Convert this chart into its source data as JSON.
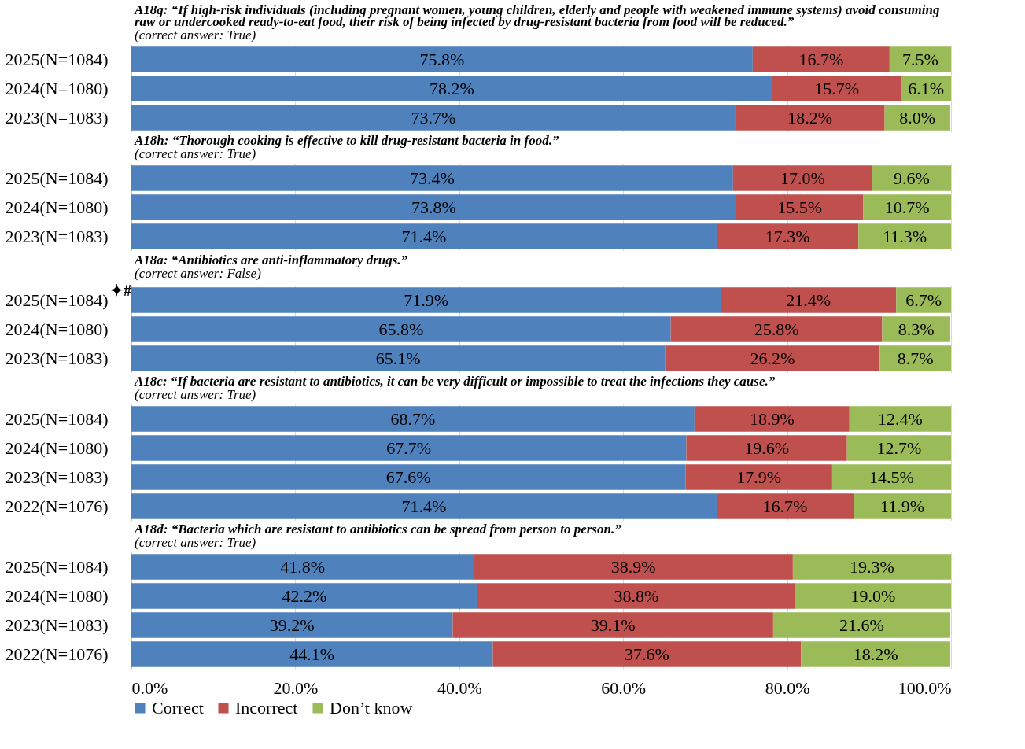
{
  "chart_data": [
    {
      "type": "bar",
      "orientation": "horizontal",
      "stacked": true,
      "title": "A18g: “If high-risk individuals (including pregnant women, young children, elderly and people with weakened immune systems) avoid consuming raw or undercooked ready-to-eat food, their risk of being infected by drug-resistant bacteria from food will be reduced.”",
      "subtitle": "(correct answer: True)",
      "categories": [
        "2025(N=1084)",
        "2024(N=1080)",
        "2023(N=1083)"
      ],
      "xlim": [
        0,
        100
      ],
      "xticks": [
        {
          "value": 0,
          "label": null
        },
        {
          "value": 20,
          "label": null
        },
        {
          "value": 40,
          "label": null
        },
        {
          "value": 60,
          "label": null
        },
        {
          "value": 80,
          "label": null
        },
        {
          "value": 100,
          "label": null
        }
      ],
      "grid": "x",
      "tick_labels": "y",
      "series": [
        {
          "color": "#4f81bd",
          "values": [
            75.8,
            78.2,
            73.7
          ],
          "value_labels": [
            "75.8%",
            "78.2%",
            "73.7%"
          ]
        },
        {
          "color": "#c0504d",
          "values": [
            16.7,
            15.7,
            18.2
          ],
          "value_labels": [
            "16.7%",
            "15.7%",
            "18.2%"
          ]
        },
        {
          "color": "#9bbb59",
          "values": [
            7.5,
            6.1,
            8.0
          ],
          "value_labels": [
            "7.5%",
            "6.1%",
            "8.0%"
          ]
        }
      ]
    },
    {
      "type": "bar",
      "orientation": "horizontal",
      "stacked": true,
      "title": "A18h: “Thorough cooking is effective to kill drug-resistant bacteria in food.”",
      "subtitle": "(correct answer: True)",
      "categories": [
        "2025(N=1084)",
        "2024(N=1080)",
        "2023(N=1083)"
      ],
      "xlim": [
        0,
        100
      ],
      "xticks": [
        {
          "value": 0,
          "label": null
        },
        {
          "value": 20,
          "label": null
        },
        {
          "value": 40,
          "label": null
        },
        {
          "value": 60,
          "label": null
        },
        {
          "value": 80,
          "label": null
        },
        {
          "value": 100,
          "label": null
        }
      ],
      "grid": "x",
      "tick_labels": "y",
      "series": [
        {
          "color": "#4f81bd",
          "values": [
            73.4,
            73.8,
            71.4
          ],
          "value_labels": [
            "73.4%",
            "73.8%",
            "71.4%"
          ]
        },
        {
          "color": "#c0504d",
          "values": [
            17.0,
            15.5,
            17.3
          ],
          "value_labels": [
            "17.0%",
            "15.5%",
            "17.3%"
          ]
        },
        {
          "color": "#9bbb59",
          "values": [
            9.6,
            10.7,
            11.3
          ],
          "value_labels": [
            "9.6%",
            "10.7%",
            "11.3%"
          ]
        }
      ]
    },
    {
      "type": "bar",
      "orientation": "horizontal",
      "stacked": true,
      "title": "A18a: “Antibiotics are anti-inflammatory drugs.”",
      "subtitle": "(correct answer: False)",
      "annotations": [
        "✦#"
      ],
      "categories": [
        "2025(N=1084)",
        "2024(N=1080)",
        "2023(N=1083)"
      ],
      "xlim": [
        0,
        100
      ],
      "xticks": [
        {
          "value": 0,
          "label": null
        },
        {
          "value": 20,
          "label": null
        },
        {
          "value": 40,
          "label": null
        },
        {
          "value": 60,
          "label": null
        },
        {
          "value": 80,
          "label": null
        },
        {
          "value": 100,
          "label": null
        }
      ],
      "grid": "x",
      "tick_labels": "y",
      "series": [
        {
          "color": "#4f81bd",
          "values": [
            71.9,
            65.8,
            65.1
          ],
          "value_labels": [
            "71.9%",
            "65.8%",
            "65.1%"
          ]
        },
        {
          "color": "#c0504d",
          "values": [
            21.4,
            25.8,
            26.2
          ],
          "value_labels": [
            "21.4%",
            "25.8%",
            "26.2%"
          ]
        },
        {
          "color": "#9bbb59",
          "values": [
            6.7,
            8.3,
            8.7
          ],
          "value_labels": [
            "6.7%",
            "8.3%",
            "8.7%"
          ]
        }
      ]
    },
    {
      "type": "bar",
      "orientation": "horizontal",
      "stacked": true,
      "title": "A18c: “If bacteria are resistant to antibiotics, it can be very difficult or impossible to treat the infections they cause.”",
      "subtitle": "(correct answer: True)",
      "categories": [
        "2025(N=1084)",
        "2024(N=1080)",
        "2023(N=1083)",
        "2022(N=1076)"
      ],
      "xlim": [
        0,
        100
      ],
      "xticks": [
        {
          "value": 0,
          "label": null
        },
        {
          "value": 20,
          "label": null
        },
        {
          "value": 40,
          "label": null
        },
        {
          "value": 60,
          "label": null
        },
        {
          "value": 80,
          "label": null
        },
        {
          "value": 100,
          "label": null
        }
      ],
      "grid": "x",
      "tick_labels": "y",
      "series": [
        {
          "color": "#4f81bd",
          "values": [
            68.7,
            67.7,
            67.6,
            71.4
          ],
          "value_labels": [
            "68.7%",
            "67.7%",
            "67.6%",
            "71.4%"
          ]
        },
        {
          "color": "#c0504d",
          "values": [
            18.9,
            19.6,
            17.9,
            16.7
          ],
          "value_labels": [
            "18.9%",
            "19.6%",
            "17.9%",
            "16.7%"
          ]
        },
        {
          "color": "#9bbb59",
          "values": [
            12.4,
            12.7,
            14.5,
            11.9
          ],
          "value_labels": [
            "12.4%",
            "12.7%",
            "14.5%",
            "11.9%"
          ]
        }
      ]
    },
    {
      "type": "bar",
      "orientation": "horizontal",
      "stacked": true,
      "title": "A18d: “Bacteria which are resistant to antibiotics can be spread from person to person.”",
      "subtitle": "(correct answer: True)",
      "categories": [
        "2025(N=1084)",
        "2024(N=1080)",
        "2023(N=1083)",
        "2022(N=1076)"
      ],
      "xlim": [
        0,
        100
      ],
      "xticks": [
        {
          "value": 0,
          "label": "0.0%"
        },
        {
          "value": 20,
          "label": "20.0%"
        },
        {
          "value": 40,
          "label": "40.0%"
        },
        {
          "value": 60,
          "label": "60.0%"
        },
        {
          "value": 80,
          "label": "80.0%"
        },
        {
          "value": 100,
          "label": "100.0%"
        }
      ],
      "grid": "x",
      "legend": "bottom",
      "series": [
        {
          "name": "Correct",
          "color": "#4f81bd",
          "values": [
            41.8,
            42.2,
            39.2,
            44.1
          ],
          "value_labels": [
            "41.8%",
            "42.2%",
            "39.2%",
            "44.1%"
          ]
        },
        {
          "name": "Incorrect",
          "color": "#c0504d",
          "values": [
            38.9,
            38.8,
            39.1,
            37.6
          ],
          "value_labels": [
            "38.9%",
            "38.8%",
            "39.1%",
            "37.6%"
          ]
        },
        {
          "name": "Don’t know",
          "color": "#9bbb59",
          "values": [
            19.3,
            19.0,
            21.6,
            18.2
          ],
          "value_labels": [
            "19.3%",
            "19.0%",
            "21.6%",
            "18.2%"
          ]
        }
      ]
    }
  ]
}
